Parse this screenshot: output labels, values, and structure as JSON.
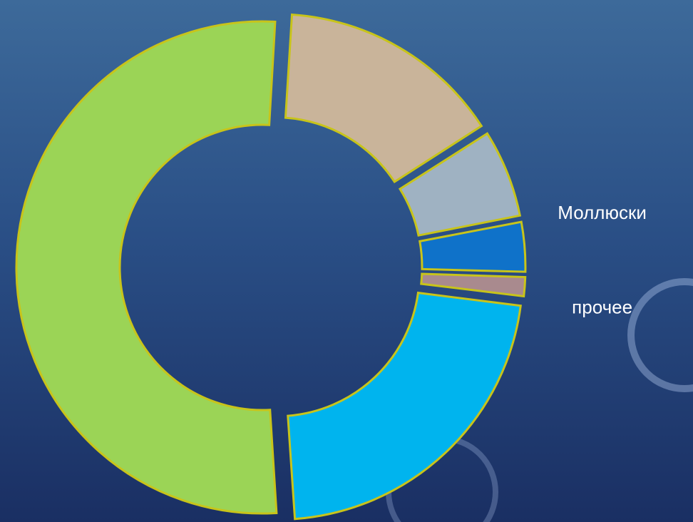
{
  "chart_data": {
    "type": "donut",
    "categories": [
      null,
      null,
      "Моллюски",
      "прочее",
      null,
      null
    ],
    "values": [
      15,
      6,
      3.5,
      1.5,
      22,
      52
    ],
    "colors": [
      "#c9b49a",
      "#9fb2c2",
      "#0f72c9",
      "#a98a8e",
      "#00b4ee",
      "#9bd456"
    ]
  }
}
